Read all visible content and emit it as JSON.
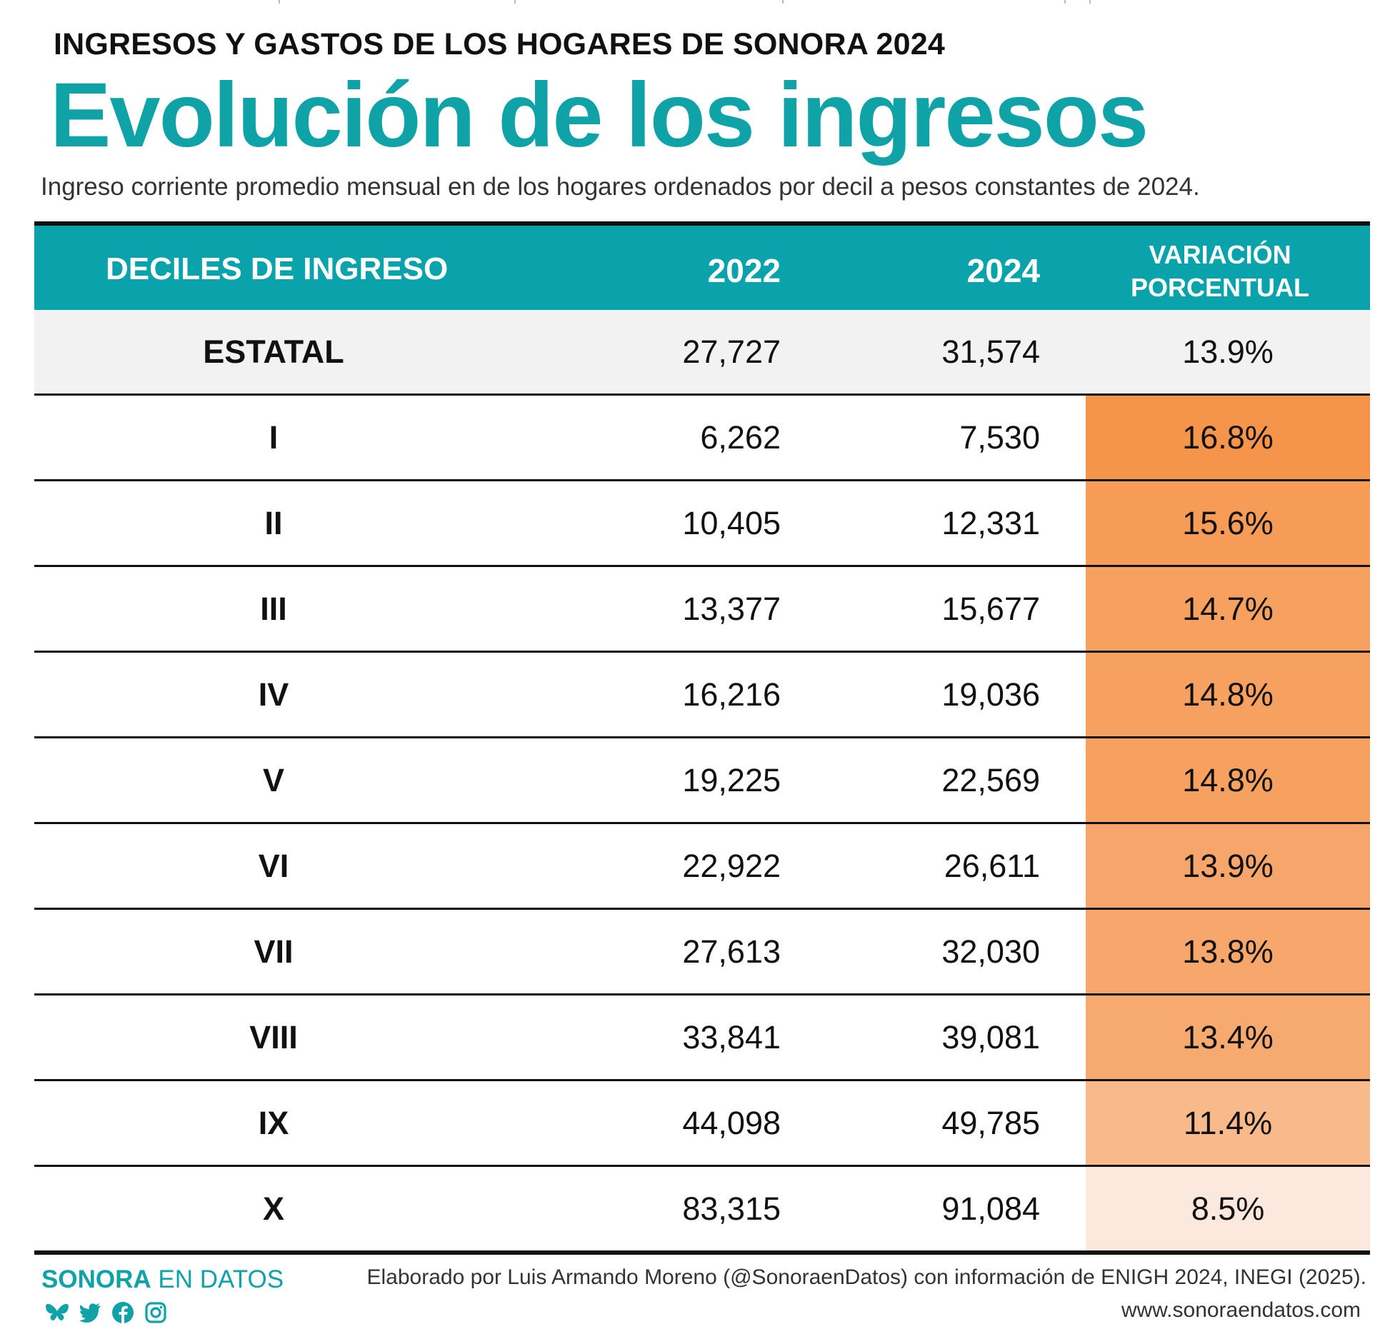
{
  "header": {
    "kicker": "INGRESOS Y GASTOS DE LOS HOGARES DE SONORA 2024",
    "title": "Evolución de los ingresos",
    "subtitle": "Ingreso corriente promedio mensual en de los hogares ordenados por decil a pesos constantes de 2024."
  },
  "chart_data": {
    "type": "table",
    "columns": {
      "decil": "DECILES DE INGRESO",
      "y2022": "2022",
      "y2024": "2024",
      "var_line1": "VARIACIÓN",
      "var_line2": "PORCENTUAL"
    },
    "rows": [
      {
        "decil": "ESTATAL",
        "y2022": "27,727",
        "y2024": "31,574",
        "var": "13.9%",
        "var_value": 13.9
      },
      {
        "decil": "I",
        "y2022": "6,262",
        "y2024": "7,530",
        "var": "16.8%",
        "var_value": 16.8
      },
      {
        "decil": "II",
        "y2022": "10,405",
        "y2024": "12,331",
        "var": "15.6%",
        "var_value": 15.6
      },
      {
        "decil": "III",
        "y2022": "13,377",
        "y2024": "15,677",
        "var": "14.7%",
        "var_value": 14.7
      },
      {
        "decil": "IV",
        "y2022": "16,216",
        "y2024": "19,036",
        "var": "14.8%",
        "var_value": 14.8
      },
      {
        "decil": "V",
        "y2022": "19,225",
        "y2024": "22,569",
        "var": "14.8%",
        "var_value": 14.8
      },
      {
        "decil": "VI",
        "y2022": "22,922",
        "y2024": "26,611",
        "var": "13.9%",
        "var_value": 13.9
      },
      {
        "decil": "VII",
        "y2022": "27,613",
        "y2024": "32,030",
        "var": "13.8%",
        "var_value": 13.8
      },
      {
        "decil": "VIII",
        "y2022": "33,841",
        "y2024": "39,081",
        "var": "13.4%",
        "var_value": 13.4
      },
      {
        "decil": "IX",
        "y2022": "44,098",
        "y2024": "49,785",
        "var": "11.4%",
        "var_value": 11.4
      },
      {
        "decil": "X",
        "y2022": "83,315",
        "y2024": "91,084",
        "var": "8.5%",
        "var_value": 8.5
      }
    ],
    "colors": {
      "header_bg": "#0aa3ab",
      "estatal_bg": "#f2f2f2",
      "heat_low": "#fce8dc",
      "heat_high": "#f5954b"
    }
  },
  "footer": {
    "brand_bold": "SONORA",
    "brand_light": " EN DATOS",
    "socials": [
      "bluesky-icon",
      "twitter-icon",
      "facebook-icon",
      "instagram-icon"
    ],
    "credit": "Elaborado por Luis Armando Moreno (@SonoraenDatos) con información de ENIGH 2024, INEGI (2025).",
    "website": "www.sonoraendatos.com"
  }
}
